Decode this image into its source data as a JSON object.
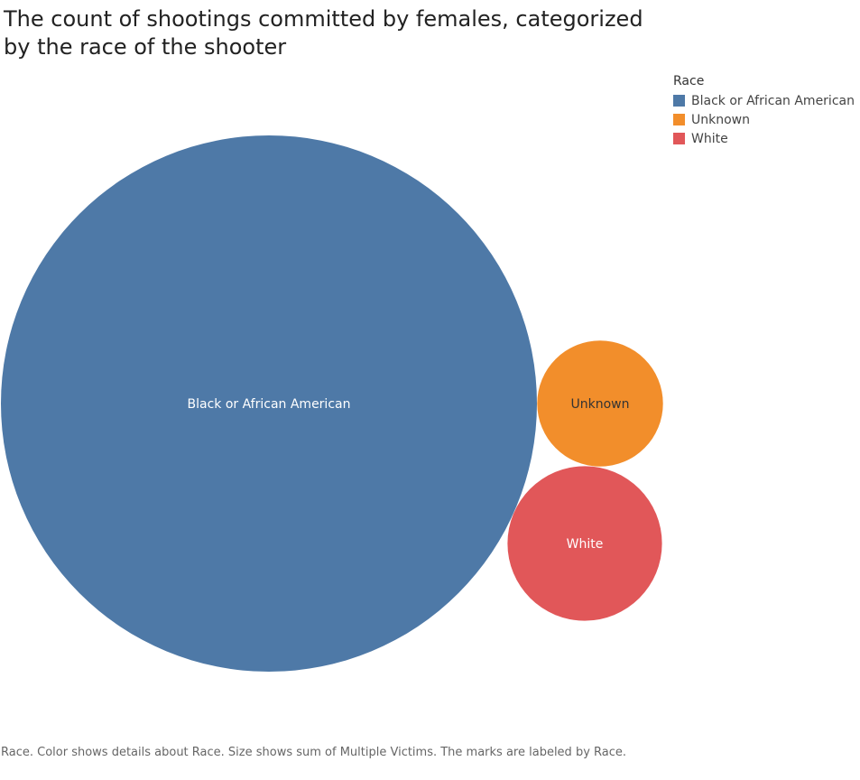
{
  "title": "The count of shootings committed by females, categorized by the race of the shooter",
  "legend": {
    "title": "Race",
    "items": [
      {
        "label": "Black or African American",
        "color": "#4e79a7"
      },
      {
        "label": "Unknown",
        "color": "#f28e2b"
      },
      {
        "label": "White",
        "color": "#e15759"
      }
    ]
  },
  "caption": "Race.  Color shows details about Race.  Size shows sum of Multiple Victims.  The marks are labeled by Race.",
  "chart_data": {
    "type": "bubble",
    "title": "The count of shootings committed by females, categorized by the race of the shooter",
    "size_measure": "sum of Multiple Victims",
    "color_measure": "Race",
    "series": [
      {
        "name": "Black or African American",
        "value": 100,
        "color": "#4e79a7",
        "label_color": "#ffffff"
      },
      {
        "name": "Unknown",
        "value": 5.5,
        "color": "#f28e2b",
        "label_color": "#333333"
      },
      {
        "name": "White",
        "value": 8.3,
        "color": "#e15759",
        "label_color": "#ffffff"
      }
    ]
  }
}
